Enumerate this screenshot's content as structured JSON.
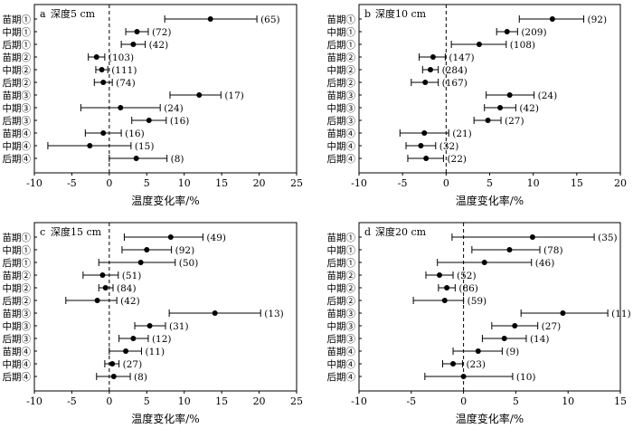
{
  "chart_data": [
    {
      "type": "forest",
      "panel_label": "a",
      "title": "深度5 cm",
      "xlabel": "温度变化率/%",
      "xlim": [
        -10,
        25
      ],
      "xticks": [
        -10,
        -5,
        0,
        5,
        10,
        15,
        20,
        25
      ],
      "reference_line": 0,
      "categories": [
        "苗期①",
        "中期①",
        "后期①",
        "苗期②",
        "中期②",
        "后期②",
        "苗期③",
        "中期③",
        "后期③",
        "苗期④",
        "中期④",
        "后期④"
      ],
      "values": [
        13.5,
        3.7,
        3.2,
        -1.7,
        -1.0,
        -0.8,
        12.0,
        1.5,
        5.3,
        -0.8,
        -2.6,
        3.6
      ],
      "ci_low": [
        7.4,
        2.2,
        1.6,
        -2.8,
        -1.8,
        -2.0,
        8.1,
        -3.8,
        3.0,
        -3.2,
        -8.2,
        0.0
      ],
      "ci_high": [
        19.7,
        5.2,
        4.8,
        -0.6,
        -0.2,
        0.4,
        14.9,
        6.8,
        7.6,
        1.6,
        2.9,
        7.7
      ],
      "n_labels": [
        "(65)",
        "(72)",
        "(42)",
        "(103)",
        "(111)",
        "(74)",
        "(17)",
        "(24)",
        "(16)",
        "(16)",
        "(15)",
        "(8)"
      ]
    },
    {
      "type": "forest",
      "panel_label": "b",
      "title": "深度10 cm",
      "xlabel": "温度变化率/%",
      "xlim": [
        -10,
        20
      ],
      "xticks": [
        -10,
        -5,
        0,
        5,
        10,
        15,
        20
      ],
      "reference_line": 0,
      "categories": [
        "苗期①",
        "中期①",
        "后期①",
        "苗期②",
        "中期②",
        "后期②",
        "苗期③",
        "中期③",
        "后期③",
        "苗期④",
        "中期④",
        "后期④"
      ],
      "values": [
        12.2,
        7.0,
        3.8,
        -1.5,
        -1.8,
        -2.4,
        7.3,
        6.2,
        4.8,
        -2.5,
        -2.9,
        -2.3
      ],
      "ci_low": [
        8.4,
        5.8,
        0.6,
        -3.1,
        -2.7,
        -4.0,
        4.6,
        4.4,
        3.2,
        -5.3,
        -4.6,
        -4.4
      ],
      "ci_high": [
        15.8,
        8.2,
        6.9,
        -0.1,
        -0.9,
        -0.9,
        10.1,
        8.0,
        6.3,
        0.3,
        -1.2,
        -0.3
      ],
      "n_labels": [
        "(92)",
        "(209)",
        "(108)",
        "(147)",
        "(284)",
        "(167)",
        "(24)",
        "(42)",
        "(27)",
        "(21)",
        "(32)",
        "(22)"
      ]
    },
    {
      "type": "forest",
      "panel_label": "c",
      "title": "深度15 cm",
      "xlabel": "温度变化率/%",
      "xlim": [
        -10,
        25
      ],
      "xticks": [
        -10,
        -5,
        0,
        5,
        10,
        15,
        20,
        25
      ],
      "reference_line": 0,
      "categories": [
        "苗期①",
        "中期①",
        "后期①",
        "苗期②",
        "中期②",
        "后期②",
        "苗期③",
        "中期③",
        "后期③",
        "苗期④",
        "中期④",
        "后期④"
      ],
      "values": [
        8.2,
        5.0,
        4.2,
        -0.9,
        -0.5,
        -1.6,
        14.1,
        5.4,
        3.2,
        2.2,
        0.4,
        0.6
      ],
      "ci_low": [
        2.0,
        1.7,
        -1.4,
        -3.5,
        -1.4,
        -5.8,
        8.0,
        3.4,
        1.3,
        0.0,
        -0.6,
        -1.7
      ],
      "ci_high": [
        12.5,
        8.3,
        8.8,
        1.2,
        0.5,
        1.0,
        20.2,
        7.5,
        5.2,
        4.3,
        1.3,
        2.8
      ],
      "n_labels": [
        "(49)",
        "(92)",
        "(50)",
        "(51)",
        "(84)",
        "(42)",
        "(13)",
        "(31)",
        "(12)",
        "(11)",
        "(27)",
        "(8)"
      ]
    },
    {
      "type": "forest",
      "panel_label": "d",
      "title": "深度20 cm",
      "xlabel": "温度变化率/%",
      "xlim": [
        -10,
        15
      ],
      "xticks": [
        -10,
        -5,
        0,
        5,
        10,
        15
      ],
      "reference_line": 0,
      "categories": [
        "苗期①",
        "中期①",
        "后期①",
        "苗期②",
        "中期②",
        "后期②",
        "苗期③",
        "中期③",
        "后期③",
        "苗期④",
        "中期④",
        "后期④"
      ],
      "values": [
        6.6,
        4.4,
        2.0,
        -2.3,
        -1.6,
        -1.8,
        9.5,
        4.9,
        3.9,
        1.4,
        -1.0,
        0.0
      ],
      "ci_low": [
        -1.1,
        0.8,
        -2.5,
        -3.6,
        -2.4,
        -4.8,
        5.5,
        2.7,
        1.8,
        -1.0,
        -2.0,
        -3.7
      ],
      "ci_high": [
        12.5,
        7.3,
        6.5,
        -1.0,
        -0.8,
        0.0,
        13.8,
        7.1,
        6.0,
        3.7,
        -0.1,
        4.7
      ],
      "n_labels": [
        "(35)",
        "(78)",
        "(46)",
        "(52)",
        "(86)",
        "(59)",
        "(11)",
        "(27)",
        "(14)",
        "(9)",
        "(23)",
        "(10)"
      ]
    }
  ],
  "colors": {
    "axis": "#000000",
    "marker": "#000000",
    "reference_line": "#000000"
  }
}
